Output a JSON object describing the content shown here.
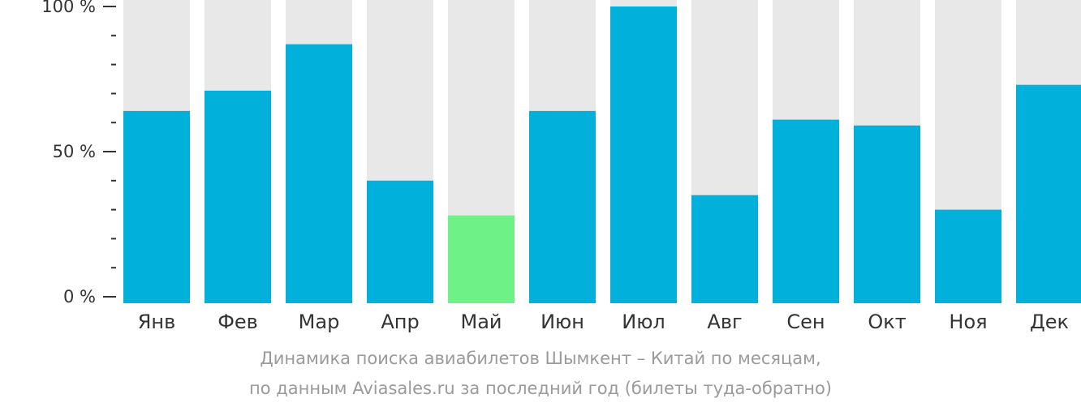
{
  "chart_data": {
    "type": "bar",
    "categories": [
      "Янв",
      "Фев",
      "Мар",
      "Апр",
      "Май",
      "Июн",
      "Июл",
      "Авг",
      "Сен",
      "Окт",
      "Ноя",
      "Дек"
    ],
    "values": [
      64,
      71,
      87,
      40,
      28,
      64,
      100,
      35,
      61,
      59,
      30,
      73
    ],
    "ylim": [
      0,
      100
    ],
    "yticks": [
      {
        "value": 0,
        "label": "0 %"
      },
      {
        "value": 50,
        "label": "50 %"
      },
      {
        "value": 100,
        "label": "100 %"
      }
    ],
    "minor_tick_step": 10,
    "highlight_index": 4,
    "colors": {
      "bar": "#02b0dc",
      "highlight": "#6ef186",
      "background_bar": "#e8e8e8",
      "axis": "#333333"
    },
    "caption_line1": "Динамика поиска авиабилетов Шымкент – Китай по месяцам,",
    "caption_line2": "по данным Aviasales.ru за последний год (билеты туда-обратно)"
  }
}
